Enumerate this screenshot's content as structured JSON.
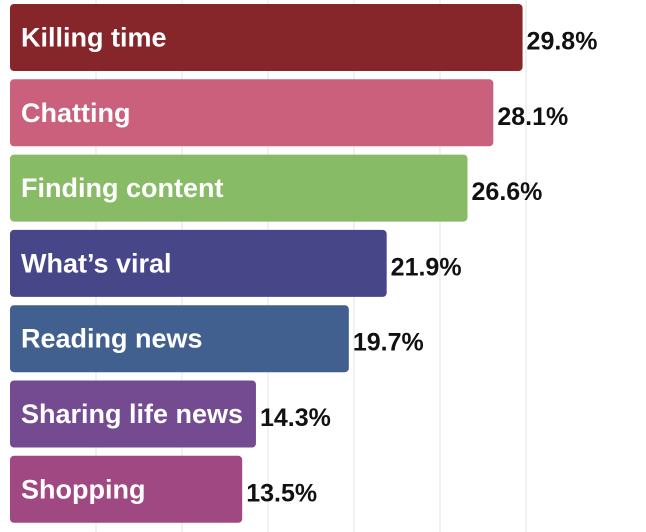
{
  "chart_data": {
    "type": "bar",
    "orientation": "horizontal",
    "categories": [
      "Killing time",
      "Chatting",
      "Finding content",
      "What’s viral",
      "Reading news",
      "Sharing life news",
      "Shopping"
    ],
    "values": [
      29.8,
      28.1,
      26.6,
      21.9,
      19.7,
      14.3,
      13.5
    ],
    "value_labels": [
      "29.8%",
      "28.1%",
      "26.6%",
      "21.9%",
      "19.7%",
      "14.3%",
      "13.5%"
    ],
    "colors": [
      "#86262b",
      "#cb607c",
      "#88bb65",
      "#474688",
      "#42608f",
      "#744b91",
      "#a04882"
    ],
    "xlim": [
      0,
      35
    ],
    "grid": "vertical lines",
    "legend": "none",
    "title": "",
    "xlabel": "",
    "ylabel": ""
  }
}
